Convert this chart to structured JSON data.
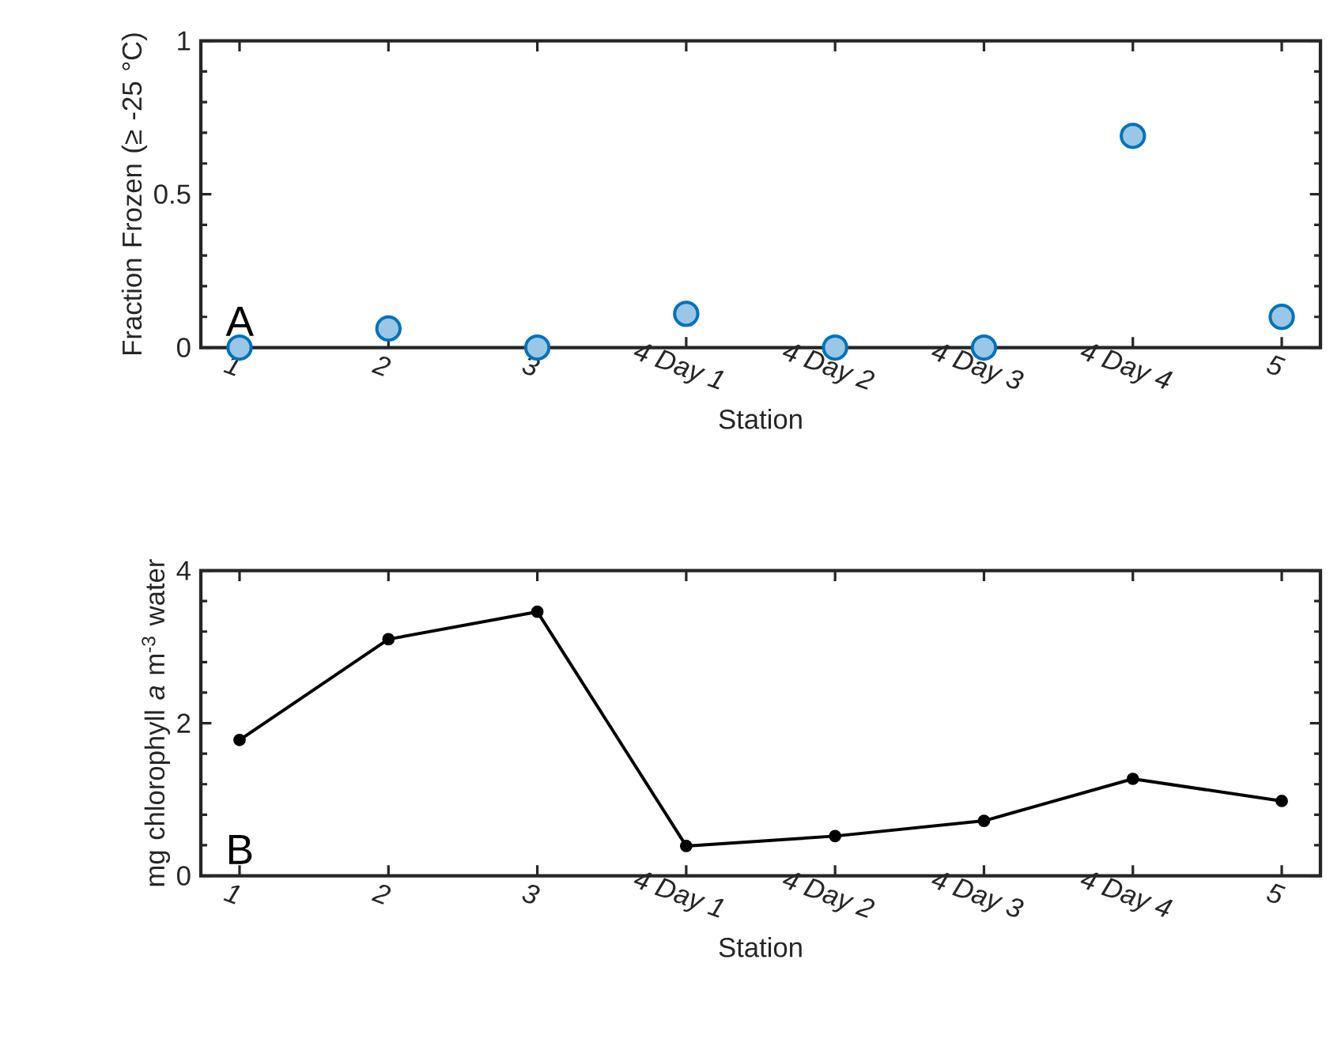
{
  "chart_data": [
    {
      "type": "scatter",
      "categories": [
        "1",
        "2",
        "3",
        "4 Day 1",
        "4 Day 2",
        "4 Day 3",
        "4 Day 4",
        "5"
      ],
      "values": [
        0,
        0.062,
        0,
        0.11,
        0,
        0,
        0.69,
        0.1
      ],
      "color": "#0072bd",
      "marker": "circle",
      "xlabel": "Station",
      "ylabel": "Fraction Frozen (≥ -25 °C)",
      "ylim": [
        0,
        1
      ],
      "yticks": [
        0,
        0.5,
        1
      ],
      "annotations": [
        "A"
      ]
    },
    {
      "type": "line",
      "categories": [
        "1",
        "2",
        "3",
        "4 Day 1",
        "4 Day 2",
        "4 Day 3",
        "4 Day 4",
        "5"
      ],
      "values": [
        1.78,
        3.1,
        3.46,
        0.39,
        0.52,
        0.72,
        1.27,
        0.98
      ],
      "color": "#000000",
      "marker": "circle",
      "line_style": "solid",
      "xlabel": "Station",
      "ylabel": "mg chlorophyll *a* m$^{-3}$ water",
      "ylim": [
        0,
        4
      ],
      "yticks": [
        0,
        2,
        4
      ],
      "annotations": [
        "B"
      ]
    }
  ]
}
